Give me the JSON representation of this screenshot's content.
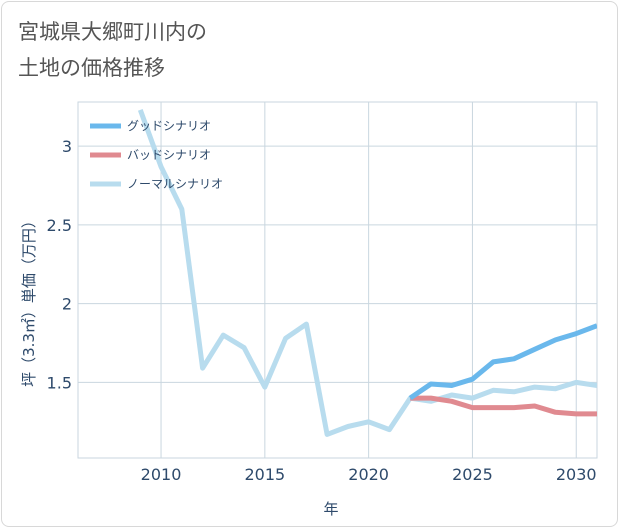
{
  "title": {
    "line1": "宮城県大郷町川内の",
    "line2": "土地の価格推移"
  },
  "chart_data": {
    "type": "line",
    "xlabel": "年",
    "ylabel": "坪（3.3㎡）単価（万円）",
    "xlim": [
      2006,
      2031
    ],
    "ylim": [
      1.02,
      3.28
    ],
    "x_ticks": [
      2010,
      2015,
      2020,
      2025,
      2030
    ],
    "x_tick_labels": [
      "2010",
      "2015",
      "2020",
      "2025",
      "2030"
    ],
    "y_ticks": [
      1.5,
      2,
      2.5,
      3
    ],
    "y_tick_labels": [
      "1.5",
      "2",
      "2.5",
      "3"
    ],
    "grid": true,
    "legend_position": "top-left",
    "series": [
      {
        "name": "グッドシナリオ",
        "color": "#6ab8ec",
        "x": [
          2022,
          2023,
          2024,
          2025,
          2026,
          2027,
          2028,
          2029,
          2030,
          2031
        ],
        "y": [
          1.4,
          1.49,
          1.48,
          1.52,
          1.63,
          1.65,
          1.71,
          1.77,
          1.81,
          1.86
        ]
      },
      {
        "name": "バッドシナリオ",
        "color": "#e08a90",
        "x": [
          2022,
          2023,
          2024,
          2025,
          2026,
          2027,
          2028,
          2029,
          2030,
          2031
        ],
        "y": [
          1.4,
          1.4,
          1.38,
          1.34,
          1.34,
          1.34,
          1.35,
          1.31,
          1.3,
          1.3
        ]
      },
      {
        "name": "ノーマルシナリオ",
        "color": "#b8dcee",
        "x": [
          2009,
          2010,
          2011,
          2012,
          2013,
          2014,
          2015,
          2016,
          2017,
          2018,
          2019,
          2020,
          2021,
          2022,
          2023,
          2024,
          2025,
          2026,
          2027,
          2028,
          2029,
          2030,
          2031
        ],
        "y": [
          3.23,
          2.87,
          2.6,
          1.59,
          1.8,
          1.72,
          1.47,
          1.78,
          1.87,
          1.17,
          1.22,
          1.25,
          1.2,
          1.4,
          1.38,
          1.42,
          1.4,
          1.45,
          1.44,
          1.47,
          1.46,
          1.5,
          1.48
        ]
      }
    ]
  }
}
